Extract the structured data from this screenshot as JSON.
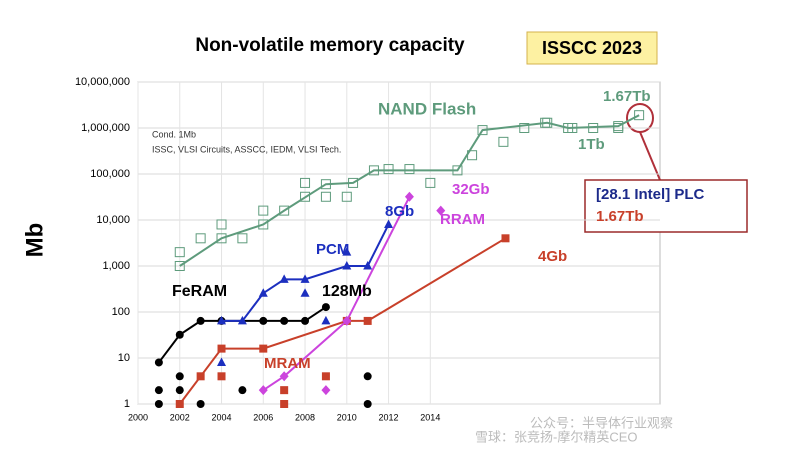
{
  "chart_data": {
    "type": "line",
    "title": "Non-volatile memory capacity",
    "badge": "ISSCC 2023",
    "y_label": "Mb",
    "log_y": true,
    "grid": true,
    "xlim": [
      2000,
      2025
    ],
    "xticks": [
      2000,
      2002,
      2004,
      2006,
      2008,
      2010,
      2012,
      2014
    ],
    "ylim": [
      1,
      10000000
    ],
    "yticks": [
      1,
      10,
      100,
      {
        "value": 1000,
        "label": "1,000"
      },
      {
        "value": 10000,
        "label": "10,000"
      },
      {
        "value": 100000,
        "label": "100,000"
      },
      {
        "value": 1000000,
        "label": "1,000,000"
      },
      {
        "value": 10000000,
        "label": "10,000,000"
      }
    ],
    "series": [
      {
        "name": "NAND Flash",
        "color": "#5e9b7c",
        "marker": "square-open",
        "x": [
          2002,
          2004,
          2006,
          2007,
          2009,
          2010.3,
          2011.3,
          2015.3,
          2016.5,
          2019.6,
          2020.6,
          2023,
          2024
        ],
        "values": [
          1000,
          4000,
          8000,
          16000,
          60000,
          64000,
          120000,
          120000,
          900000,
          1300000,
          1000000,
          1100000,
          1900000
        ],
        "points": {
          "x": [
            2002,
            2003,
            2004,
            2005,
            2006,
            2008,
            2008,
            2009,
            2010,
            2012,
            2013,
            2014,
            2016,
            2017.5,
            2018.5,
            2019.5,
            2020.8,
            2021.8,
            2023
          ],
          "values": [
            2000,
            4000,
            8000,
            4000,
            16000,
            64000,
            32000,
            32000,
            32000,
            128000,
            128000,
            64000,
            256000,
            500000,
            1000000,
            1300000,
            1000000,
            1000000,
            1000000
          ]
        }
      },
      {
        "name": "FeRAM",
        "color": "#000000",
        "marker": "circle",
        "x": [
          2001,
          2002,
          2003,
          2004,
          2006,
          2007,
          2008,
          2009
        ],
        "values": [
          8,
          32,
          64,
          64,
          64,
          64,
          64,
          128
        ],
        "points": {
          "x": [
            2001,
            2001,
            2002,
            2002,
            2003,
            2005,
            2011,
            2011
          ],
          "values": [
            1,
            2,
            4,
            2,
            1,
            2,
            4,
            1
          ]
        }
      },
      {
        "name": "PCM",
        "color": "#1c2fbf",
        "marker": "triangle",
        "x": [
          2004,
          2005,
          2006,
          2007,
          2008,
          2010,
          2011,
          2012
        ],
        "values": [
          64,
          64,
          256,
          512,
          512,
          1000,
          1000,
          8000
        ],
        "points": {
          "x": [
            2004,
            2008,
            2009,
            2010
          ],
          "values": [
            8,
            256,
            64,
            2000
          ]
        }
      },
      {
        "name": "MRAM",
        "color": "#c8402a",
        "marker": "square",
        "x": [
          2002,
          2003,
          2004,
          2006,
          2010,
          2011,
          2017.6
        ],
        "values": [
          1,
          4,
          16,
          16,
          64,
          64,
          4000
        ],
        "points": {
          "x": [
            2007,
            2007,
            2009,
            2004
          ],
          "values": [
            2,
            1,
            4,
            4
          ]
        }
      },
      {
        "name": "RRAM",
        "color": "#cc44dd",
        "marker": "diamond",
        "x": [
          2006,
          2007,
          2010,
          2013
        ],
        "values": [
          2,
          4,
          64,
          32000
        ],
        "points": {
          "x": [
            2009,
            2014.5
          ],
          "values": [
            2,
            16000
          ]
        }
      }
    ],
    "annotations": [
      "1.67Tb",
      "1Tb",
      "128Mb",
      "8Gb",
      "32Gb",
      "4Gb",
      "Cond. 1Mb",
      "ISSC, VLSI Circuits, ASSCC, IEDM, VLSI Tech.",
      "[28.1 Intel]  PLC",
      "1.67Tb",
      "公众号：半导体行业观察",
      "雪球：张竞扬-摩尔精英CEO"
    ]
  }
}
